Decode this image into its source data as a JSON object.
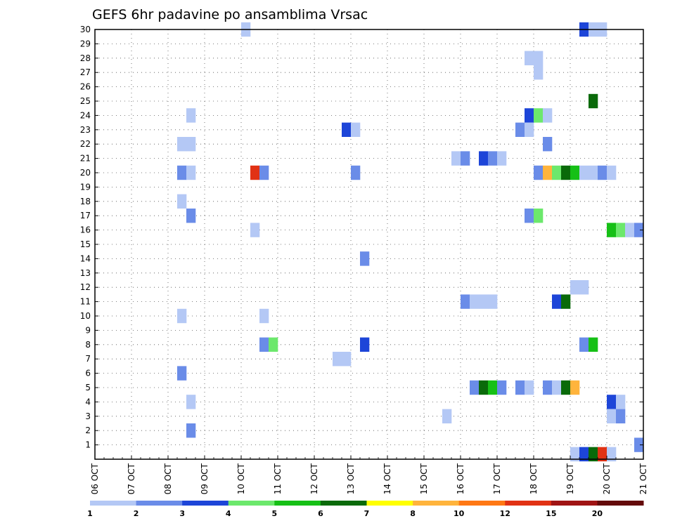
{
  "chart_data": {
    "type": "heatmap",
    "title": "GEFS 6hr padavine po ansamblima Vrsac",
    "xlabel": "",
    "ylabel": "",
    "x_tick_labels": [
      "06 OCT",
      "07 OCT",
      "08 OCT",
      "09 OCT",
      "10 OCT",
      "11 OCT",
      "12 OCT",
      "13 OCT",
      "14 OCT",
      "15 OCT",
      "16 OCT",
      "17 OCT",
      "18 OCT",
      "19 OCT",
      "20 OCT",
      "21 OCT"
    ],
    "x_unit": "6-hour steps after 06 OCT 00Z",
    "xlim": [
      0,
      60
    ],
    "y_tick_labels": [
      "1",
      "2",
      "3",
      "4",
      "5",
      "6",
      "7",
      "8",
      "9",
      "10",
      "11",
      "12",
      "13",
      "14",
      "15",
      "16",
      "17",
      "18",
      "19",
      "20",
      "21",
      "22",
      "23",
      "24",
      "25",
      "26",
      "27",
      "28",
      "29",
      "30"
    ],
    "ylim": [
      0,
      30
    ],
    "grid": true,
    "colorbar": {
      "labels": [
        "1",
        "2",
        "3",
        "4",
        "5",
        "6",
        "7",
        "8",
        "10",
        "12",
        "15",
        "20"
      ],
      "colors": [
        "#b4c8f5",
        "#6a8ce8",
        "#1d45d8",
        "#6ce86c",
        "#16c016",
        "#0a6a0a",
        "#ffff00",
        "#ffb43c",
        "#ff7814",
        "#e13214",
        "#a01414",
        "#640a0a"
      ]
    },
    "cells": [
      {
        "y": 30,
        "x": 16.5,
        "c": 1
      },
      {
        "y": 30,
        "x": 53.5,
        "c": 3
      },
      {
        "y": 30,
        "x": 54.5,
        "c": 1
      },
      {
        "y": 30,
        "x": 55.5,
        "c": 1
      },
      {
        "y": 28,
        "x": 47.5,
        "c": 1
      },
      {
        "y": 28,
        "x": 48.5,
        "c": 1
      },
      {
        "y": 27,
        "x": 48.5,
        "c": 1
      },
      {
        "y": 25,
        "x": 54.5,
        "c": 6
      },
      {
        "y": 24,
        "x": 10.5,
        "c": 1
      },
      {
        "y": 24,
        "x": 47.5,
        "c": 3
      },
      {
        "y": 24,
        "x": 48.5,
        "c": 4
      },
      {
        "y": 24,
        "x": 49.5,
        "c": 1
      },
      {
        "y": 23,
        "x": 27.5,
        "c": 3
      },
      {
        "y": 23,
        "x": 28.5,
        "c": 1
      },
      {
        "y": 23,
        "x": 46.5,
        "c": 2
      },
      {
        "y": 23,
        "x": 47.5,
        "c": 1
      },
      {
        "y": 22,
        "x": 9.5,
        "c": 1
      },
      {
        "y": 22,
        "x": 10.5,
        "c": 1
      },
      {
        "y": 22,
        "x": 49.5,
        "c": 2
      },
      {
        "y": 21,
        "x": 39.5,
        "c": 1
      },
      {
        "y": 21,
        "x": 40.5,
        "c": 2
      },
      {
        "y": 21,
        "x": 42.5,
        "c": 3
      },
      {
        "y": 21,
        "x": 43.5,
        "c": 2
      },
      {
        "y": 21,
        "x": 44.5,
        "c": 1
      },
      {
        "y": 20,
        "x": 9.5,
        "c": 2
      },
      {
        "y": 20,
        "x": 10.5,
        "c": 1
      },
      {
        "y": 20,
        "x": 17.5,
        "c": 10
      },
      {
        "y": 20,
        "x": 18.5,
        "c": 2
      },
      {
        "y": 20,
        "x": 28.5,
        "c": 2
      },
      {
        "y": 20,
        "x": 48.5,
        "c": 2
      },
      {
        "y": 20,
        "x": 49.5,
        "c": 8
      },
      {
        "y": 20,
        "x": 50.5,
        "c": 4
      },
      {
        "y": 20,
        "x": 51.5,
        "c": 6
      },
      {
        "y": 20,
        "x": 52.5,
        "c": 5
      },
      {
        "y": 20,
        "x": 53.5,
        "c": 1
      },
      {
        "y": 20,
        "x": 54.5,
        "c": 1
      },
      {
        "y": 20,
        "x": 55.5,
        "c": 2
      },
      {
        "y": 20,
        "x": 56.5,
        "c": 1
      },
      {
        "y": 18,
        "x": 9.5,
        "c": 1
      },
      {
        "y": 17,
        "x": 10.5,
        "c": 2
      },
      {
        "y": 17,
        "x": 47.5,
        "c": 2
      },
      {
        "y": 17,
        "x": 48.5,
        "c": 4
      },
      {
        "y": 16,
        "x": 17.5,
        "c": 1
      },
      {
        "y": 16,
        "x": 56.5,
        "c": 5
      },
      {
        "y": 16,
        "x": 57.5,
        "c": 4
      },
      {
        "y": 16,
        "x": 58.5,
        "c": 1
      },
      {
        "y": 16,
        "x": 59.5,
        "c": 2
      },
      {
        "y": 14,
        "x": 29.5,
        "c": 2
      },
      {
        "y": 12,
        "x": 52.5,
        "c": 1
      },
      {
        "y": 12,
        "x": 53.5,
        "c": 1
      },
      {
        "y": 11,
        "x": 40.5,
        "c": 2
      },
      {
        "y": 11,
        "x": 41.5,
        "c": 1
      },
      {
        "y": 11,
        "x": 42.5,
        "c": 1
      },
      {
        "y": 11,
        "x": 43.5,
        "c": 1
      },
      {
        "y": 11,
        "x": 50.5,
        "c": 3
      },
      {
        "y": 11,
        "x": 51.5,
        "c": 6
      },
      {
        "y": 10,
        "x": 9.5,
        "c": 1
      },
      {
        "y": 10,
        "x": 18.5,
        "c": 1
      },
      {
        "y": 8,
        "x": 18.5,
        "c": 2
      },
      {
        "y": 8,
        "x": 19.5,
        "c": 4
      },
      {
        "y": 8,
        "x": 29.5,
        "c": 3
      },
      {
        "y": 8,
        "x": 53.5,
        "c": 2
      },
      {
        "y": 8,
        "x": 54.5,
        "c": 5
      },
      {
        "y": 7,
        "x": 26.5,
        "c": 1
      },
      {
        "y": 7,
        "x": 27.5,
        "c": 1
      },
      {
        "y": 6,
        "x": 9.5,
        "c": 2
      },
      {
        "y": 5,
        "x": 41.5,
        "c": 2
      },
      {
        "y": 5,
        "x": 42.5,
        "c": 6
      },
      {
        "y": 5,
        "x": 43.5,
        "c": 5
      },
      {
        "y": 5,
        "x": 44.5,
        "c": 2
      },
      {
        "y": 5,
        "x": 46.5,
        "c": 2
      },
      {
        "y": 5,
        "x": 47.5,
        "c": 1
      },
      {
        "y": 5,
        "x": 49.5,
        "c": 2
      },
      {
        "y": 5,
        "x": 50.5,
        "c": 1
      },
      {
        "y": 5,
        "x": 51.5,
        "c": 6
      },
      {
        "y": 5,
        "x": 52.5,
        "c": 8
      },
      {
        "y": 4,
        "x": 10.5,
        "c": 1
      },
      {
        "y": 4,
        "x": 56.5,
        "c": 3
      },
      {
        "y": 4,
        "x": 57.5,
        "c": 1
      },
      {
        "y": 3,
        "x": 38.5,
        "c": 1
      },
      {
        "y": 3,
        "x": 56.5,
        "c": 1
      },
      {
        "y": 3,
        "x": 57.5,
        "c": 2
      },
      {
        "y": 2,
        "x": 10.5,
        "c": 2
      },
      {
        "y": 1,
        "x": 59.5,
        "c": 2
      },
      {
        "y": 0.35,
        "x": 52.5,
        "c": 1
      },
      {
        "y": 0.35,
        "x": 53.5,
        "c": 3
      },
      {
        "y": 0.35,
        "x": 54.5,
        "c": 6
      },
      {
        "y": 0.35,
        "x": 55.5,
        "c": 10
      },
      {
        "y": 0.35,
        "x": 56.5,
        "c": 1
      }
    ]
  }
}
